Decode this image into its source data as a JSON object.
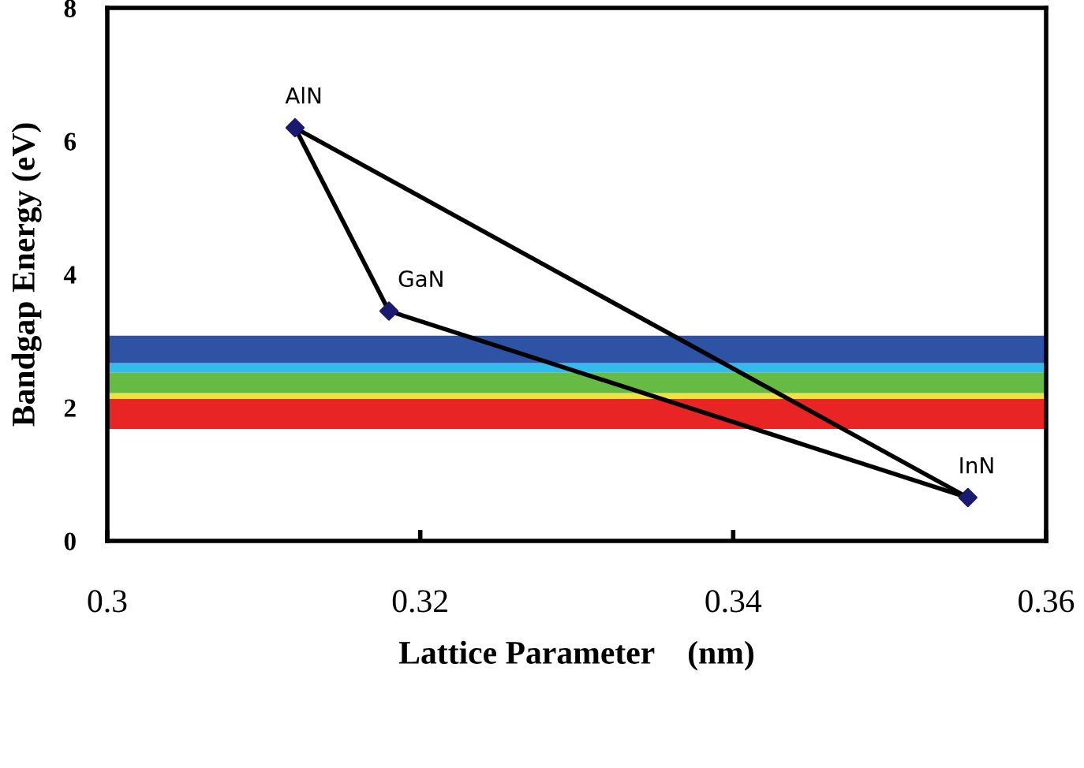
{
  "chart_data": {
    "type": "line",
    "xlabel": "Lattice Parameter    (nm)",
    "ylabel": "Bandgap Energy (eV)",
    "series": [
      {
        "x": [
          0.312,
          0.318
        ],
        "values": [
          6.2,
          3.45
        ],
        "color": "#000000",
        "marker": "none"
      },
      {
        "x": [
          0.318,
          0.355
        ],
        "values": [
          3.45,
          0.65
        ],
        "color": "#000000",
        "marker": "none"
      },
      {
        "x": [
          0.312,
          0.355
        ],
        "values": [
          6.2,
          0.65
        ],
        "color": "#000000",
        "marker": "none"
      },
      {
        "type": "scatter",
        "x": [
          0.312,
          0.318,
          0.355
        ],
        "values": [
          6.2,
          3.45,
          0.65
        ],
        "color": "#1a1a6e"
      }
    ],
    "marker": "diamond",
    "annotations": [
      {
        "text": "AlN",
        "x": 0.312,
        "y": 6.2
      },
      {
        "text": "GaN",
        "x": 0.318,
        "y": 3.45
      },
      {
        "text": "InN",
        "x": 0.355,
        "y": 0.65
      }
    ],
    "bands": [
      {
        "axis": "y",
        "from": 1.68,
        "to": 2.13,
        "color": "#e82424"
      },
      {
        "axis": "y",
        "from": 2.13,
        "to": 2.22,
        "color": "#f0e040"
      },
      {
        "axis": "y",
        "from": 2.22,
        "to": 2.53,
        "color": "#66bb44"
      },
      {
        "axis": "y",
        "from": 2.53,
        "to": 2.67,
        "color": "#33bbee"
      },
      {
        "axis": "y",
        "from": 2.67,
        "to": 3.08,
        "color": "#2e52a4"
      }
    ],
    "xlim": [
      0.3,
      0.36
    ],
    "xticks": [
      0.3,
      0.32,
      0.34,
      0.36
    ],
    "ylim": [
      0,
      8
    ],
    "yticks": [
      0,
      2,
      4,
      6,
      8
    ],
    "grid": false,
    "legend": false
  }
}
